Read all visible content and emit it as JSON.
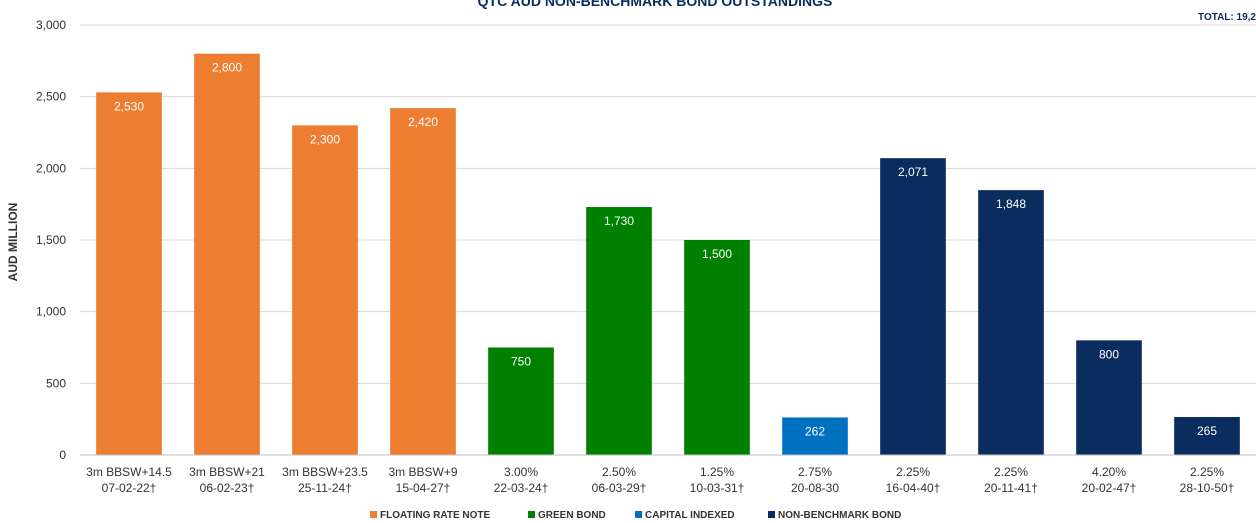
{
  "chart_data": {
    "type": "bar",
    "title": "QTC AUD NON-BENCHMARK BOND OUTSTANDINGS",
    "total_label": "TOTAL: 19,2",
    "ylabel": "AUD MILLION",
    "xlabel": "",
    "ylim": [
      0,
      3000
    ],
    "yticks": [
      0,
      500,
      1000,
      1500,
      2000,
      2500,
      3000
    ],
    "ytick_labels": [
      "0",
      "500",
      "1,000",
      "1,500",
      "2,000",
      "2,500",
      "3,000"
    ],
    "grid": true,
    "legend_position": "bottom",
    "categories": [
      {
        "line1": "3m BBSW+14.5",
        "line2": "07-02-22†"
      },
      {
        "line1": "3m BBSW+21",
        "line2": "06-02-23†"
      },
      {
        "line1": "3m BBSW+23.5",
        "line2": "25-11-24†"
      },
      {
        "line1": "3m BBSW+9",
        "line2": "15-04-27†"
      },
      {
        "line1": "3.00%",
        "line2": "22-03-24†"
      },
      {
        "line1": "2.50%",
        "line2": "06-03-29†"
      },
      {
        "line1": "1.25%",
        "line2": "10-03-31†"
      },
      {
        "line1": "2.75%",
        "line2": "20-08-30"
      },
      {
        "line1": "2.25%",
        "line2": "16-04-40†"
      },
      {
        "line1": "2.25%",
        "line2": "20-11-41†"
      },
      {
        "line1": "4.20%",
        "line2": "20-02-47†"
      },
      {
        "line1": "2.25%",
        "line2": "28-10-50†"
      }
    ],
    "values": [
      2530,
      2800,
      2300,
      2420,
      750,
      1730,
      1500,
      262,
      2071,
      1848,
      800,
      265
    ],
    "value_labels": [
      "2,530",
      "2,800",
      "2,300",
      "2,420",
      "750",
      "1,730",
      "1,500",
      "262",
      "2,071",
      "1,848",
      "800",
      "265"
    ],
    "bar_series": [
      0,
      0,
      0,
      0,
      1,
      1,
      1,
      2,
      3,
      3,
      3,
      3
    ],
    "series": [
      {
        "name": "FLOATING RATE NOTE",
        "color": "#ed7d31"
      },
      {
        "name": "GREEN BOND",
        "color": "#008000"
      },
      {
        "name": "CAPITAL INDEXED",
        "color": "#0070c0"
      },
      {
        "name": "NON-BENCHMARK BOND",
        "color": "#0b2c5f"
      }
    ]
  }
}
